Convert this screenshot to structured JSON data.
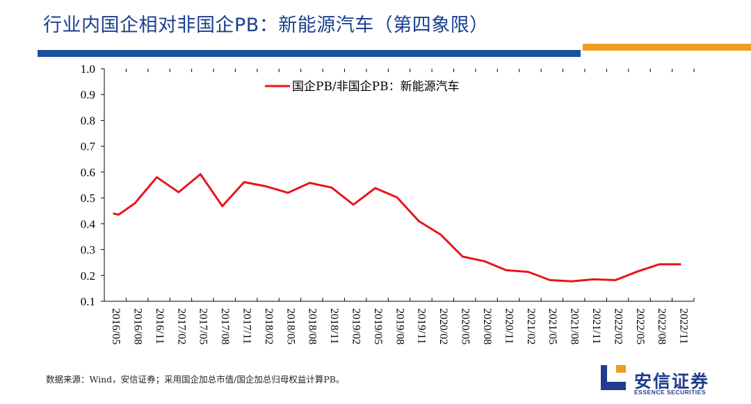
{
  "page": {
    "title": "行业内国企相对非国企PB：新能源汽车（第四象限）",
    "source": "数据来源：Wind，安信证券；采用国企加总市值/国企加总归母权益计算PB。",
    "logo_cn": "安信证券",
    "logo_en": "ESSENCE SECURITIES"
  },
  "colors": {
    "title": "#1a3f8f",
    "bar_blue": "#1f4e9c",
    "bar_orange": "#f29b1e",
    "line": "#e8141b",
    "logo_blue": "#1f3d8c",
    "logo_orange": "#f29b1e"
  },
  "chart_data": {
    "type": "line",
    "title": "",
    "xlabel": "",
    "ylabel": "",
    "ylim": [
      0.1,
      1.0
    ],
    "yticks": [
      "0.1",
      "0.2",
      "0.3",
      "0.4",
      "0.5",
      "0.6",
      "0.7",
      "0.8",
      "0.9",
      "1.0"
    ],
    "xticks": [
      "2016/05",
      "2016/08",
      "2016/11",
      "2017/02",
      "2017/05",
      "2017/08",
      "2017/11",
      "2018/02",
      "2018/05",
      "2018/08",
      "2018/11",
      "2019/02",
      "2019/05",
      "2019/08",
      "2019/11",
      "2020/02",
      "2020/05",
      "2020/08",
      "2020/11",
      "2021/02",
      "2021/05",
      "2021/08",
      "2021/11",
      "2022/02",
      "2022/05",
      "2022/08",
      "2022/11"
    ],
    "legend": "top-center",
    "grid": false,
    "series": [
      {
        "name": "国企PB/非国企PB：新能源汽车",
        "color": "#e8141b",
        "x": [
          0,
          0.25,
          1,
          2,
          3,
          4,
          5,
          6,
          7,
          8,
          9,
          10,
          11,
          12,
          13,
          14,
          15,
          16,
          17,
          18,
          19,
          20,
          21,
          22,
          23,
          24,
          25,
          26
        ],
        "values": [
          0.44,
          0.435,
          0.48,
          0.58,
          0.522,
          0.592,
          0.468,
          0.561,
          0.545,
          0.52,
          0.558,
          0.54,
          0.474,
          0.538,
          0.502,
          0.41,
          0.358,
          0.273,
          0.255,
          0.22,
          0.214,
          0.182,
          0.177,
          0.185,
          0.182,
          0.215,
          0.243,
          0.243
        ]
      }
    ]
  }
}
